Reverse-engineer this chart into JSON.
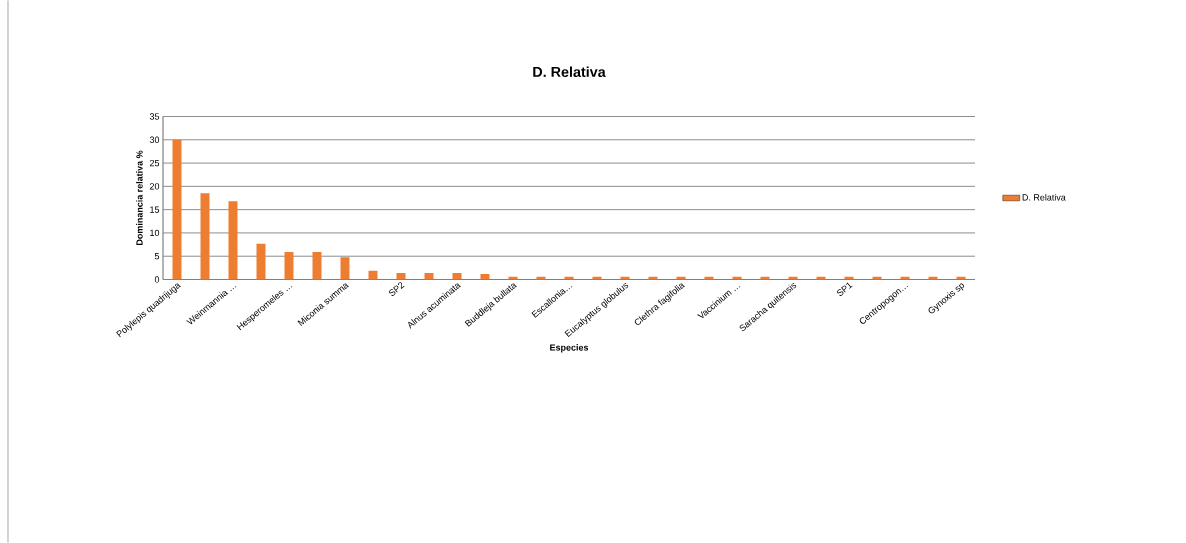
{
  "chart_data": {
    "type": "bar",
    "title": "D. Relativa",
    "xlabel": "Especies",
    "ylabel": "Dominancia relativa %",
    "categories": [
      "Polylepis quadrijuga",
      null,
      "Weinmannia …",
      null,
      "Hesperomeles …",
      null,
      "Miconia summa",
      null,
      "SP2",
      null,
      "Alnus acuminata",
      null,
      "Buddleja bullata",
      null,
      "Escallonia…",
      null,
      "Eucalyptus globulus",
      null,
      "Clethra fagifolia",
      null,
      "Vaccinium …",
      null,
      "Saracha quitensis",
      null,
      "SP1",
      null,
      "Centropogon…",
      null,
      "Gynoxis sp"
    ],
    "series": [
      {
        "name": "D. Relativa",
        "color": "#ed7d31",
        "values": [
          30,
          18.5,
          16.8,
          7.7,
          5.9,
          5.9,
          4.8,
          1.9,
          1.4,
          1.4,
          1.4,
          1.2,
          0.6,
          0.6,
          0.6,
          0.6,
          0.6,
          0.6,
          0.6,
          0.6,
          0.6,
          0.6,
          0.6,
          0.6,
          0.6,
          0.6,
          0.6,
          0.6,
          0.6
        ]
      }
    ],
    "ylim": [
      0,
      35
    ],
    "yticks": [
      0,
      5,
      10,
      15,
      20,
      25,
      30,
      35
    ],
    "grid": "y",
    "legend": "right"
  }
}
